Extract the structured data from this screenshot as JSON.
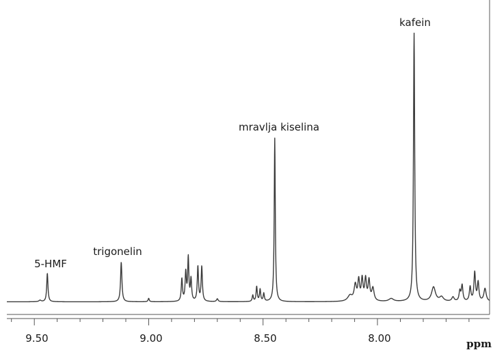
{
  "chart_data": {
    "type": "line",
    "xlabel": "ppm",
    "xlim": [
      9.62,
      7.51
    ],
    "x_reversed": true,
    "ylim": [
      0,
      100
    ],
    "grid": false,
    "ticks": [
      9.5,
      9.0,
      8.5,
      8.0
    ],
    "tick_labels": [
      "9.50",
      "9.00",
      "8.50",
      "8.00"
    ],
    "baseline": 2.5,
    "line_color": "#3a3a3a",
    "annotations": [
      {
        "text": "5-HMF",
        "x": 9.44
      },
      {
        "text": "trigonelin",
        "x": 9.12
      },
      {
        "text": "mravlja kiselina",
        "x": 8.45
      },
      {
        "text": "kafein",
        "x": 7.84
      }
    ],
    "peaks": [
      {
        "x": 9.475,
        "h": 0.5,
        "w": 0.006
      },
      {
        "x": 9.443,
        "h": 10.0,
        "w": 0.0032
      },
      {
        "x": 9.12,
        "h": 13.8,
        "w": 0.0035
      },
      {
        "x": 9.0,
        "h": 1.2,
        "w": 0.003
      },
      {
        "x": 8.855,
        "h": 7.8,
        "w": 0.0032
      },
      {
        "x": 8.838,
        "h": 10.0,
        "w": 0.0032
      },
      {
        "x": 8.827,
        "h": 15.0,
        "w": 0.003
      },
      {
        "x": 8.815,
        "h": 7.6,
        "w": 0.0032
      },
      {
        "x": 8.785,
        "h": 12.1,
        "w": 0.0032
      },
      {
        "x": 8.768,
        "h": 12.1,
        "w": 0.0032
      },
      {
        "x": 8.7,
        "h": 1.0,
        "w": 0.004
      },
      {
        "x": 8.545,
        "h": 2.2,
        "w": 0.003
      },
      {
        "x": 8.528,
        "h": 5.2,
        "w": 0.003
      },
      {
        "x": 8.513,
        "h": 4.2,
        "w": 0.003
      },
      {
        "x": 8.497,
        "h": 2.8,
        "w": 0.003
      },
      {
        "x": 8.449,
        "h": 57.0,
        "w": 0.0028
      },
      {
        "x": 8.12,
        "h": 2.0,
        "w": 0.012
      },
      {
        "x": 8.097,
        "h": 5.5,
        "w": 0.006
      },
      {
        "x": 8.082,
        "h": 7.0,
        "w": 0.0045
      },
      {
        "x": 8.067,
        "h": 7.5,
        "w": 0.0045
      },
      {
        "x": 8.052,
        "h": 7.5,
        "w": 0.0045
      },
      {
        "x": 8.037,
        "h": 7.0,
        "w": 0.0045
      },
      {
        "x": 8.02,
        "h": 4.5,
        "w": 0.006
      },
      {
        "x": 7.94,
        "h": 1.0,
        "w": 0.012
      },
      {
        "x": 7.84,
        "h": 93.5,
        "w": 0.0032
      },
      {
        "x": 7.755,
        "h": 5.0,
        "w": 0.01
      },
      {
        "x": 7.72,
        "h": 1.5,
        "w": 0.01
      },
      {
        "x": 7.67,
        "h": 1.5,
        "w": 0.006
      },
      {
        "x": 7.64,
        "h": 3.5,
        "w": 0.004
      },
      {
        "x": 7.63,
        "h": 5.5,
        "w": 0.004
      },
      {
        "x": 7.595,
        "h": 5.0,
        "w": 0.004
      },
      {
        "x": 7.575,
        "h": 10.0,
        "w": 0.004
      },
      {
        "x": 7.56,
        "h": 6.5,
        "w": 0.004
      },
      {
        "x": 7.53,
        "h": 4.5,
        "w": 0.006
      }
    ]
  }
}
